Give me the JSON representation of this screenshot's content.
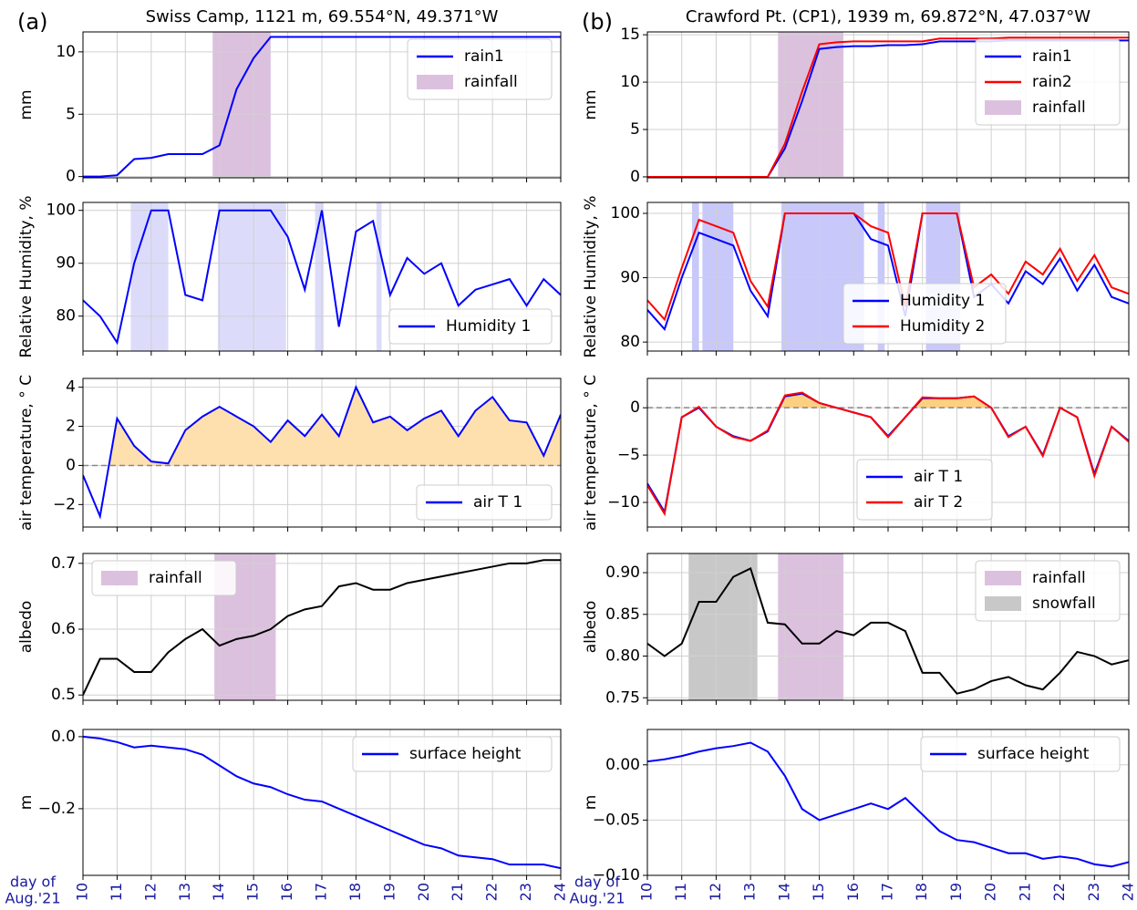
{
  "chart_data": [
    {
      "type": "line",
      "panel_label": "(a)",
      "title": "Swiss Camp, 1121 m, 69.554°N, 49.371°W",
      "ylabel": "mm",
      "xlim": [
        10,
        24
      ],
      "xticks": [
        10,
        11,
        12,
        13,
        14,
        15,
        16,
        17,
        18,
        19,
        20,
        21,
        22,
        23,
        24
      ],
      "ylim": [
        -0.1,
        11.6
      ],
      "yticks": [
        0,
        5,
        10
      ],
      "grid": true,
      "legend": "upper right",
      "x": [
        10,
        10.5,
        11,
        11.5,
        12,
        12.5,
        13,
        13.5,
        14,
        14.5,
        15,
        15.5,
        16,
        16.5,
        17,
        17.5,
        18,
        18.5,
        19,
        19.5,
        20,
        20.5,
        21,
        21.5,
        22,
        22.5,
        23,
        23.5,
        24
      ],
      "series": [
        {
          "name": "rain1",
          "color": "#0000ff",
          "values": [
            0,
            0,
            0.1,
            1.4,
            1.5,
            1.8,
            1.8,
            1.8,
            2.5,
            7,
            9.5,
            11.2,
            11.2,
            11.2,
            11.2,
            11.2,
            11.2,
            11.2,
            11.2,
            11.2,
            11.2,
            11.2,
            11.2,
            11.2,
            11.2,
            11.2,
            11.2,
            11.2,
            11.2
          ]
        }
      ],
      "spans": [
        {
          "name": "rainfall",
          "color": "#dcc1df",
          "x": [
            13.8,
            15.5
          ]
        }
      ]
    },
    {
      "type": "line",
      "ylabel": "Relative Humidity, %",
      "xlim": [
        10,
        24
      ],
      "xticks": [
        10,
        11,
        12,
        13,
        14,
        15,
        16,
        17,
        18,
        19,
        20,
        21,
        22,
        23,
        24
      ],
      "ylim": [
        73.4,
        101.5
      ],
      "yticks": [
        80,
        90,
        100
      ],
      "grid": true,
      "legend": "lower right",
      "x": [
        10,
        10.5,
        11,
        11.5,
        12,
        12.5,
        13,
        13.5,
        14,
        14.5,
        15,
        15.5,
        16,
        16.5,
        17,
        17.5,
        18,
        18.5,
        19,
        19.5,
        20,
        20.5,
        21,
        21.5,
        22,
        22.5,
        23,
        23.5,
        24
      ],
      "series": [
        {
          "name": "Humidity 1",
          "color": "#0000ff",
          "values": [
            83,
            80,
            75,
            90,
            100,
            100,
            84,
            83,
            100,
            100,
            100,
            100,
            95,
            85,
            100,
            78,
            96,
            98,
            84,
            91,
            88,
            90,
            82,
            85,
            86,
            87,
            82,
            87,
            84
          ]
        }
      ],
      "fill_color": "#dcdcfa",
      "fill_spans": [
        [
          11.4,
          12.5
        ],
        [
          13.95,
          15.95
        ],
        [
          16.8,
          17.05
        ],
        [
          18.6,
          18.75
        ]
      ]
    },
    {
      "type": "line",
      "ylabel": "air temperature, ° C",
      "xlim": [
        10,
        24
      ],
      "xticks": [
        10,
        11,
        12,
        13,
        14,
        15,
        16,
        17,
        18,
        19,
        20,
        21,
        22,
        23,
        24
      ],
      "ylim": [
        -3.15,
        4.45
      ],
      "yticks": [
        {
          "value": -2,
          "label": "−2"
        },
        0,
        2,
        4
      ],
      "grid": true,
      "legend": "lower right",
      "zero_line": true,
      "fill_above_zero": "#fde0ae",
      "x": [
        10,
        10.5,
        11,
        11.5,
        12,
        12.5,
        13,
        13.5,
        14,
        14.5,
        15,
        15.5,
        16,
        16.5,
        17,
        17.5,
        18,
        18.5,
        19,
        19.5,
        20,
        20.5,
        21,
        21.5,
        22,
        22.5,
        23,
        23.5,
        24
      ],
      "series": [
        {
          "name": "air T 1",
          "color": "#0000ff",
          "values": [
            -0.5,
            -2.6,
            2.4,
            1.0,
            0.2,
            0.1,
            1.8,
            2.5,
            3.0,
            2.5,
            2.0,
            1.2,
            2.3,
            1.5,
            2.6,
            1.5,
            4.0,
            2.2,
            2.5,
            1.8,
            2.4,
            2.8,
            1.5,
            2.8,
            3.5,
            2.3,
            2.2,
            0.5,
            2.6
          ]
        }
      ]
    },
    {
      "type": "line",
      "ylabel": "albedo",
      "xlim": [
        10,
        24
      ],
      "xticks": [
        10,
        11,
        12,
        13,
        14,
        15,
        16,
        17,
        18,
        19,
        20,
        21,
        22,
        23,
        24
      ],
      "ylim": [
        0.492,
        0.715
      ],
      "yticks": [
        0.5,
        0.6,
        0.7
      ],
      "grid": true,
      "legend": "upper left",
      "x": [
        10,
        10.5,
        11,
        11.5,
        12,
        12.5,
        13,
        13.5,
        14,
        14.5,
        15,
        15.5,
        16,
        16.5,
        17,
        17.5,
        18,
        18.5,
        19,
        19.5,
        20,
        20.5,
        21,
        21.5,
        22,
        22.5,
        23,
        23.5,
        24
      ],
      "series": [
        {
          "color": "#000000",
          "values": [
            0.5,
            0.555,
            0.555,
            0.535,
            0.535,
            0.565,
            0.585,
            0.6,
            0.575,
            0.585,
            0.59,
            0.6,
            0.62,
            0.63,
            0.635,
            0.665,
            0.67,
            0.66,
            0.66,
            0.67,
            0.675,
            0.68,
            0.685,
            0.69,
            0.695,
            0.7,
            0.7,
            0.705,
            0.705
          ]
        }
      ],
      "spans": [
        {
          "name": "rainfall",
          "color": "#dcc1df",
          "x": [
            13.85,
            15.65
          ]
        }
      ]
    },
    {
      "type": "line",
      "ylabel": "m",
      "xlabel": [
        "day of",
        "Aug.'21"
      ],
      "xlim": [
        10,
        24
      ],
      "xticks": [
        10,
        11,
        12,
        13,
        14,
        15,
        16,
        17,
        18,
        19,
        20,
        21,
        22,
        23,
        24
      ],
      "ylim": [
        -0.385,
        0.02
      ],
      "yticks": [
        {
          "value": -0.2,
          "label": "−0.2"
        },
        {
          "value": 0,
          "label": "0.0"
        }
      ],
      "grid": true,
      "legend": "upper right",
      "x": [
        10,
        10.5,
        11,
        11.5,
        12,
        12.5,
        13,
        13.5,
        14,
        14.5,
        15,
        15.5,
        16,
        16.5,
        17,
        17.5,
        18,
        18.5,
        19,
        19.5,
        20,
        20.5,
        21,
        21.5,
        22,
        22.5,
        23,
        23.5,
        24
      ],
      "series": [
        {
          "name": "surface height",
          "color": "#0000ff",
          "values": [
            0,
            -0.005,
            -0.015,
            -0.03,
            -0.025,
            -0.03,
            -0.035,
            -0.05,
            -0.08,
            -0.11,
            -0.13,
            -0.14,
            -0.16,
            -0.175,
            -0.18,
            -0.2,
            -0.22,
            -0.24,
            -0.26,
            -0.28,
            -0.3,
            -0.31,
            -0.33,
            -0.335,
            -0.34,
            -0.355,
            -0.355,
            -0.355,
            -0.365
          ]
        }
      ]
    },
    {
      "type": "line",
      "panel_label": "(b)",
      "title": "Crawford Pt. (CP1), 1939 m, 69.872°N, 47.037°W",
      "ylabel": "mm",
      "xlim": [
        10,
        24
      ],
      "xticks": [
        10,
        11,
        12,
        13,
        14,
        15,
        16,
        17,
        18,
        19,
        20,
        21,
        22,
        23,
        24
      ],
      "ylim": [
        -0.1,
        15.3
      ],
      "yticks": [
        0,
        5,
        10,
        15
      ],
      "grid": true,
      "legend": "upper right",
      "x": [
        10,
        10.5,
        11,
        11.5,
        12,
        12.5,
        13,
        13.5,
        14,
        14.5,
        15,
        15.5,
        16,
        16.5,
        17,
        17.5,
        18,
        18.5,
        19,
        19.5,
        20,
        20.5,
        21,
        21.5,
        22,
        22.5,
        23,
        23.5,
        24
      ],
      "series": [
        {
          "name": "rain1",
          "color": "#0000ff",
          "values": [
            0,
            0,
            0,
            0,
            0,
            0,
            0,
            0,
            3,
            8,
            13.5,
            13.7,
            13.8,
            13.8,
            13.9,
            13.9,
            14,
            14.3,
            14.3,
            14.3,
            14.3,
            14.4,
            14.4,
            14.4,
            14.4,
            14.4,
            14.4,
            14.4,
            14.4
          ]
        },
        {
          "name": "rain2",
          "color": "#ff0000",
          "values": [
            0,
            0,
            0,
            0,
            0,
            0,
            0,
            0,
            3.5,
            9,
            14,
            14.2,
            14.3,
            14.3,
            14.3,
            14.3,
            14.3,
            14.6,
            14.6,
            14.6,
            14.6,
            14.7,
            14.7,
            14.7,
            14.7,
            14.7,
            14.7,
            14.7,
            14.7
          ]
        }
      ],
      "spans": [
        {
          "name": "rainfall",
          "color": "#dcc1df",
          "x": [
            13.8,
            15.7
          ]
        }
      ]
    },
    {
      "type": "line",
      "ylabel": "Relative Humidity, %",
      "xlim": [
        10,
        24
      ],
      "xticks": [
        10,
        11,
        12,
        13,
        14,
        15,
        16,
        17,
        18,
        19,
        20,
        21,
        22,
        23,
        24
      ],
      "ylim": [
        78.6,
        101.7
      ],
      "yticks": [
        80,
        90,
        100
      ],
      "grid": true,
      "legend": "lower center",
      "x": [
        10,
        10.5,
        11,
        11.5,
        12,
        12.5,
        13,
        13.5,
        14,
        14.5,
        15,
        15.5,
        16,
        16.5,
        17,
        17.5,
        18,
        18.5,
        19,
        19.5,
        20,
        20.5,
        21,
        21.5,
        22,
        22.5,
        23,
        23.5,
        24
      ],
      "series": [
        {
          "name": "Humidity 1",
          "color": "#0000ff",
          "values": [
            85,
            82,
            90,
            97,
            96,
            95,
            88,
            84,
            100,
            100,
            100,
            100,
            100,
            96,
            95,
            84,
            100,
            100,
            100,
            87,
            89,
            86,
            91,
            89,
            93,
            88,
            92,
            87,
            86
          ]
        },
        {
          "name": "Humidity 2",
          "color": "#ff0000",
          "values": [
            86.5,
            83.5,
            91.5,
            99,
            98,
            97,
            89.5,
            85.5,
            100,
            100,
            100,
            100,
            100,
            98,
            97,
            85.5,
            100,
            100,
            100,
            88.5,
            90.5,
            87.5,
            92.5,
            90.5,
            94.5,
            89.5,
            93.5,
            88.5,
            87.5
          ]
        }
      ],
      "fill_color": "#c8c8fa",
      "fill_spans": [
        [
          11.3,
          11.5
        ],
        [
          11.6,
          12.5
        ],
        [
          13.9,
          16.3
        ],
        [
          16.7,
          16.9
        ],
        [
          18.1,
          19.1
        ]
      ]
    },
    {
      "type": "line",
      "ylabel": "air temperature, ° C",
      "xlim": [
        10,
        24
      ],
      "xticks": [
        10,
        11,
        12,
        13,
        14,
        15,
        16,
        17,
        18,
        19,
        20,
        21,
        22,
        23,
        24
      ],
      "ylim": [
        -12.6,
        3.1
      ],
      "yticks": [
        {
          "value": -10,
          "label": "−10"
        },
        {
          "value": -5,
          "label": "−5"
        },
        0
      ],
      "grid": true,
      "legend": "lower center",
      "zero_line": true,
      "fill_above_zero": "#fdcf80",
      "x": [
        10,
        10.5,
        11,
        11.5,
        12,
        12.5,
        13,
        13.5,
        14,
        14.5,
        15,
        15.5,
        16,
        16.5,
        17,
        17.5,
        18,
        18.5,
        19,
        19.5,
        20,
        20.5,
        21,
        21.5,
        22,
        22.5,
        23,
        23.5,
        24
      ],
      "series": [
        {
          "name": "air T 1",
          "color": "#0000ff",
          "values": [
            -8,
            -11,
            -1,
            0,
            -2,
            -3,
            -3.5,
            -2.5,
            1.2,
            1.5,
            0.5,
            0,
            -0.5,
            -1,
            -3,
            -1,
            1,
            1,
            1,
            1.2,
            0,
            -3,
            -2,
            -5,
            0,
            -1,
            -7,
            -2,
            -3.5
          ]
        },
        {
          "name": "air T 2",
          "color": "#ff0000",
          "values": [
            -8.2,
            -11.2,
            -1,
            0.1,
            -2,
            -3.1,
            -3.5,
            -2.4,
            1.3,
            1.6,
            0.5,
            0,
            -0.5,
            -1,
            -3.1,
            -1,
            1.1,
            1,
            1,
            1.2,
            0,
            -3.1,
            -2,
            -5.1,
            0,
            -1,
            -7.2,
            -2,
            -3.6
          ]
        }
      ]
    },
    {
      "type": "line",
      "ylabel": "albedo",
      "xlim": [
        10,
        24
      ],
      "xticks": [
        10,
        11,
        12,
        13,
        14,
        15,
        16,
        17,
        18,
        19,
        20,
        21,
        22,
        23,
        24
      ],
      "ylim": [
        0.747,
        0.923
      ],
      "yticks": [
        0.75,
        {
          "value": 0.8,
          "label": "0.80"
        },
        0.85,
        {
          "value": 0.9,
          "label": "0.90"
        }
      ],
      "grid": true,
      "legend": "upper right",
      "x": [
        10,
        10.5,
        11,
        11.5,
        12,
        12.5,
        13,
        13.5,
        14,
        14.5,
        15,
        15.5,
        16,
        16.5,
        17,
        17.5,
        18,
        18.5,
        19,
        19.5,
        20,
        20.5,
        21,
        21.5,
        22,
        22.5,
        23,
        23.5,
        24
      ],
      "series": [
        {
          "color": "#000000",
          "values": [
            0.815,
            0.8,
            0.815,
            0.865,
            0.865,
            0.895,
            0.905,
            0.84,
            0.838,
            0.815,
            0.815,
            0.83,
            0.825,
            0.84,
            0.84,
            0.83,
            0.78,
            0.78,
            0.755,
            0.76,
            0.77,
            0.775,
            0.765,
            0.76,
            0.78,
            0.805,
            0.8,
            0.79,
            0.795
          ]
        }
      ],
      "spans": [
        {
          "name": "rainfall",
          "color": "#dcc1df",
          "x": [
            13.8,
            15.7
          ]
        },
        {
          "name": "snowfall",
          "color": "#c8c8c8",
          "x": [
            11.2,
            13.2
          ]
        }
      ]
    },
    {
      "type": "line",
      "ylabel": "m",
      "xlabel": [
        "day of",
        "Aug.'21"
      ],
      "xlim": [
        10,
        24
      ],
      "xticks": [
        10,
        11,
        12,
        13,
        14,
        15,
        16,
        17,
        18,
        19,
        20,
        21,
        22,
        23,
        24
      ],
      "ylim": [
        -0.1,
        0.032
      ],
      "yticks": [
        {
          "value": -0.1,
          "label": "−0.10"
        },
        {
          "value": -0.05,
          "label": "−0.05"
        },
        {
          "value": 0,
          "label": "0.00"
        }
      ],
      "grid": true,
      "legend": "upper right",
      "x": [
        10,
        10.5,
        11,
        11.5,
        12,
        12.5,
        13,
        13.5,
        14,
        14.5,
        15,
        15.5,
        16,
        16.5,
        17,
        17.5,
        18,
        18.5,
        19,
        19.5,
        20,
        20.5,
        21,
        21.5,
        22,
        22.5,
        23,
        23.5,
        24
      ],
      "series": [
        {
          "name": "surface height",
          "color": "#0000ff",
          "values": [
            0.003,
            0.005,
            0.008,
            0.012,
            0.015,
            0.017,
            0.02,
            0.012,
            -0.01,
            -0.04,
            -0.05,
            -0.045,
            -0.04,
            -0.035,
            -0.04,
            -0.03,
            -0.045,
            -0.06,
            -0.068,
            -0.07,
            -0.075,
            -0.08,
            -0.08,
            -0.085,
            -0.083,
            -0.085,
            -0.09,
            -0.092,
            -0.088
          ]
        }
      ]
    }
  ]
}
